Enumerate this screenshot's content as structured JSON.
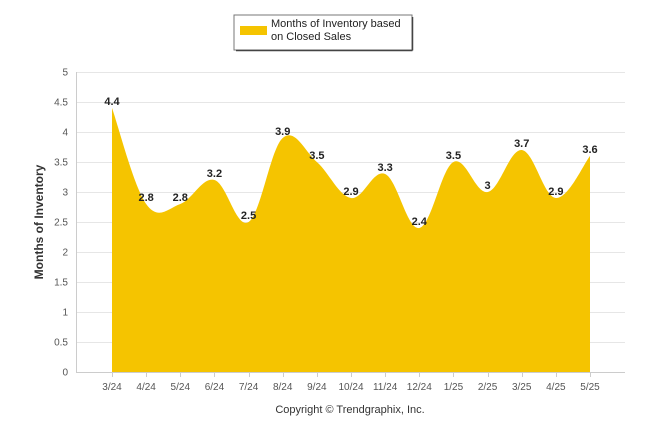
{
  "chart_data": {
    "type": "area",
    "categories": [
      "3/24",
      "4/24",
      "5/24",
      "6/24",
      "7/24",
      "8/24",
      "9/24",
      "10/24",
      "11/24",
      "12/24",
      "1/25",
      "2/25",
      "3/25",
      "4/25",
      "5/25"
    ],
    "series": [
      {
        "name": "Months of Inventory based on Closed Sales",
        "values": [
          4.4,
          2.8,
          2.8,
          3.2,
          2.5,
          3.9,
          3.5,
          2.9,
          3.3,
          2.4,
          3.5,
          3,
          3.7,
          2.9,
          3.6
        ],
        "labels": [
          "4.4",
          "2.8",
          "2.8",
          "3.2",
          "2.5",
          "3.9",
          "3.5",
          "2.9",
          "3.3",
          "2.4",
          "3.5",
          "3",
          "3.7",
          "2.9",
          "3.6"
        ]
      }
    ],
    "ylabel": "Months of Inventory",
    "ylim": [
      0,
      5
    ],
    "yticks": [
      "0",
      "0.5",
      "1",
      "1.5",
      "2",
      "2.5",
      "3",
      "3.5",
      "4",
      "4.5",
      "5"
    ],
    "grid": true,
    "legend_position": "top-center",
    "colors": {
      "fill": "#F5C400",
      "grid": "#e6e6e6",
      "axis": "#cccccc"
    }
  },
  "footer": {
    "copyright": "Copyright © Trendgraphix, Inc."
  },
  "legend": {
    "line1": "Months of Inventory based",
    "line2": "on Closed Sales"
  }
}
